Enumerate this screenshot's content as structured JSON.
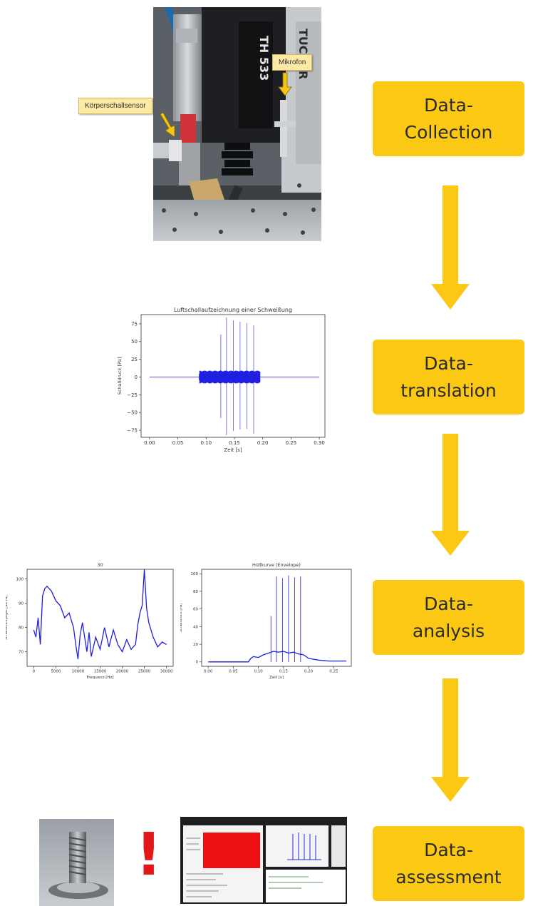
{
  "stages": [
    {
      "line1": "Data-",
      "line2": "Collection"
    },
    {
      "line1": "Data-",
      "line2": "translation"
    },
    {
      "line1": "Data-",
      "line2": "analysis"
    },
    {
      "line1": "Data-",
      "line2": "assessment"
    }
  ],
  "photo": {
    "callout_sensor": "Körperschallsensor",
    "callout_mic": "Mikrofon",
    "machine_label": "TH 533",
    "brand_label": "TUCKER"
  },
  "exclamation": "!",
  "chart_data": [
    {
      "type": "line",
      "title": "Luftschallaufzeichnung einer Schweißung",
      "xlabel": "Zeit [s]",
      "ylabel": "Schalldruck [Pa]",
      "xlim": [
        -0.015,
        0.31
      ],
      "ylim": [
        -85,
        88
      ],
      "xticks": [
        0.0,
        0.05,
        0.1,
        0.15,
        0.2,
        0.25,
        0.3
      ],
      "xtick_labels": [
        "0.00",
        "0.05",
        "0.10",
        "0.15",
        "0.20",
        "0.25",
        "0.30"
      ],
      "yticks": [
        75,
        50,
        25,
        0,
        -25,
        -50,
        -75
      ],
      "ytick_labels": [
        "75",
        "50",
        "25",
        "0",
        "−25",
        "−50",
        "−75"
      ],
      "color": "#1f1fe0",
      "burst_band": [
        0.088,
        0.195
      ],
      "band_amplitude": 9,
      "spikes": [
        {
          "x": 0.126,
          "top": 60,
          "bottom": -58
        },
        {
          "x": 0.136,
          "top": 84,
          "bottom": -82
        },
        {
          "x": 0.148,
          "top": 80,
          "bottom": -76
        },
        {
          "x": 0.16,
          "top": 78,
          "bottom": -74
        },
        {
          "x": 0.172,
          "top": 76,
          "bottom": -73
        },
        {
          "x": 0.184,
          "top": 73,
          "bottom": -80
        }
      ]
    },
    {
      "type": "line",
      "title": "30",
      "xlabel": "Frequenz [Hz]",
      "ylabel": "Schalldruckpegel [dB Pa]",
      "xlim": [
        -1500,
        31500
      ],
      "ylim": [
        64,
        104
      ],
      "xticks": [
        0,
        5000,
        10000,
        15000,
        20000,
        25000,
        30000
      ],
      "xtick_labels": [
        "0",
        "5000",
        "10000",
        "15000",
        "20000",
        "25000",
        "30000"
      ],
      "yticks": [
        100,
        90,
        80,
        70
      ],
      "ytick_labels": [
        "100",
        "90",
        "80",
        "70"
      ],
      "color": "#1f1fe0",
      "x": [
        0,
        500,
        1000,
        1500,
        2000,
        2500,
        3000,
        3500,
        4000,
        5000,
        6000,
        7000,
        8000,
        9000,
        9500,
        10000,
        10500,
        11000,
        12000,
        12500,
        13000,
        14000,
        15000,
        16000,
        17000,
        18000,
        19000,
        20000,
        21000,
        22000,
        23000,
        23500,
        24000,
        24500,
        25000,
        25500,
        26000,
        27000,
        28000,
        29000,
        30000
      ],
      "values": [
        79,
        76,
        84,
        73,
        93,
        96,
        97,
        96,
        95,
        91,
        89,
        84,
        86,
        80,
        73,
        67,
        77,
        82,
        70,
        78,
        68,
        76,
        71,
        80,
        72,
        79,
        73,
        70,
        75,
        71,
        73,
        81,
        86,
        89,
        104,
        88,
        82,
        76,
        72,
        74,
        73
      ]
    },
    {
      "type": "line",
      "title": "Hüllkurve (Envelope)",
      "xlabel": "Zeit [s]",
      "ylabel": "Schalldruck [Pa]",
      "xlim": [
        -0.013,
        0.285
      ],
      "ylim": [
        -5,
        105
      ],
      "xticks": [
        0.0,
        0.05,
        0.1,
        0.15,
        0.2,
        0.25
      ],
      "xtick_labels": [
        "0.00",
        "0.05",
        "0.10",
        "0.15",
        "0.20",
        "0.25"
      ],
      "yticks": [
        100,
        80,
        60,
        40,
        20,
        0
      ],
      "ytick_labels": [
        "100",
        "80",
        "60",
        "40",
        "20",
        "0"
      ],
      "color": "#1f1fe0",
      "x": [
        0.0,
        0.08,
        0.085,
        0.09,
        0.1,
        0.11,
        0.12,
        0.13,
        0.14,
        0.15,
        0.16,
        0.17,
        0.18,
        0.19,
        0.2,
        0.21,
        0.22,
        0.24,
        0.26,
        0.275
      ],
      "values": [
        0,
        0,
        4,
        6,
        5,
        8,
        10,
        12,
        11,
        12,
        10,
        11,
        9,
        8,
        4,
        3,
        2,
        1,
        1,
        1
      ],
      "spikes": [
        {
          "x": 0.125,
          "top": 52
        },
        {
          "x": 0.136,
          "top": 97
        },
        {
          "x": 0.148,
          "top": 95
        },
        {
          "x": 0.16,
          "top": 98
        },
        {
          "x": 0.172,
          "top": 96
        },
        {
          "x": 0.184,
          "top": 97
        }
      ]
    }
  ]
}
